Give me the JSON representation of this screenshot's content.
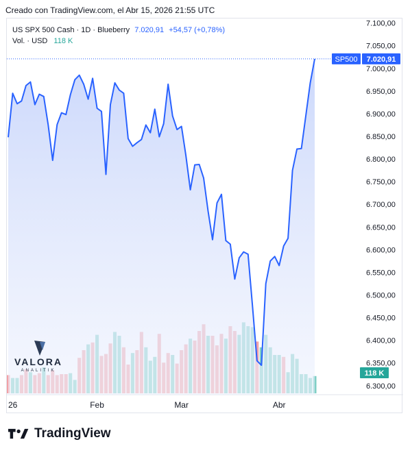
{
  "header": {
    "created_by": "Creado con TradingView.com, el Abr 15, 2026 21:55 UTC"
  },
  "legend": {
    "symbol": "US SPX 500 Cash · 1D · Blueberry",
    "last_price": "7.020,91",
    "change": "+54,57 (+0,78%)",
    "volume_label": "Vol. · USD",
    "volume_value": "118 K"
  },
  "badges": {
    "symbol_tag": "SP500",
    "price_tag": "7.020,91",
    "volume_tag": "118 K"
  },
  "watermark": {
    "brand": "VALORA",
    "sub": "ANALITIK"
  },
  "footer": {
    "brand": "TradingView"
  },
  "colors": {
    "line": "#2962ff",
    "area_top": "#c9d6fb",
    "area_bottom": "#eef2fd",
    "vol_up": "#7fcfc5",
    "vol_down": "#f2a1a6",
    "badge_blue": "#2962ff",
    "badge_green": "#26a69a"
  },
  "chart_data": {
    "type": "area",
    "y_ticks": [
      "7.100,00",
      "7.050,00",
      "7.000,00",
      "6.950,00",
      "6.900,00",
      "6.850,00",
      "6.800,00",
      "6.750,00",
      "6.700,00",
      "6.650,00",
      "6.600,00",
      "6.550,00",
      "6.500,00",
      "6.450,00",
      "6.400,00",
      "6.350,00",
      "6.300,00"
    ],
    "y_tick_values": [
      7100,
      7050,
      7000,
      6950,
      6900,
      6850,
      6800,
      6750,
      6700,
      6650,
      6600,
      6550,
      6500,
      6450,
      6400,
      6350,
      6300
    ],
    "ylim": [
      6280,
      7110
    ],
    "x_ticks": [
      {
        "label": "26",
        "index": 0
      },
      {
        "label": "Feb",
        "index": 20
      },
      {
        "label": "Mar",
        "index": 39
      },
      {
        "label": "Abr",
        "index": 61
      }
    ],
    "series": [
      {
        "values": [
          6848,
          6945,
          6922,
          6928,
          6962,
          6970,
          6920,
          6943,
          6938,
          6875,
          6797,
          6876,
          6902,
          6898,
          6942,
          6975,
          6985,
          6965,
          6932,
          6978,
          6912,
          6905,
          6766,
          6920,
          6968,
          6952,
          6945,
          6845,
          6828,
          6836,
          6843,
          6875,
          6858,
          6910,
          6849,
          6878,
          6965,
          6895,
          6865,
          6872,
          6808,
          6732,
          6787,
          6788,
          6758,
          6685,
          6622,
          6703,
          6722,
          6620,
          6612,
          6535,
          6582,
          6595,
          6590,
          6475,
          6355,
          6345,
          6525,
          6575,
          6585,
          6565,
          6608,
          6625,
          6775,
          6822,
          6823,
          6895,
          6968,
          7020.91
        ]
      }
    ],
    "volume": {
      "values": [
        19,
        16,
        16,
        19,
        25,
        22,
        19,
        21,
        27,
        19,
        24,
        19,
        20,
        20,
        21,
        14,
        37,
        45,
        51,
        53,
        61,
        39,
        41,
        52,
        64,
        60,
        48,
        30,
        42,
        45,
        64,
        48,
        34,
        38,
        62,
        32,
        42,
        40,
        31,
        45,
        51,
        57,
        55,
        65,
        72,
        60,
        60,
        50,
        62,
        57,
        70,
        65,
        61,
        74,
        70,
        69,
        54,
        48,
        61,
        48,
        40,
        40,
        38,
        22,
        41,
        36,
        20,
        20,
        16,
        18
      ],
      "direction": [
        "d",
        "u",
        "u",
        "d",
        "d",
        "u",
        "d",
        "d",
        "u",
        "d",
        "d",
        "d",
        "d",
        "d",
        "u",
        "u",
        "d",
        "d",
        "u",
        "d",
        "u",
        "d",
        "d",
        "d",
        "u",
        "u",
        "d",
        "d",
        "u",
        "d",
        "d",
        "u",
        "u",
        "u",
        "d",
        "d",
        "d",
        "u",
        "d",
        "d",
        "d",
        "u",
        "d",
        "d",
        "d",
        "u",
        "d",
        "d",
        "d",
        "u",
        "d",
        "d",
        "u",
        "u",
        "u",
        "u",
        "d",
        "u",
        "u",
        "u",
        "u",
        "u",
        "d",
        "u",
        "u",
        "u",
        "u",
        "u",
        "u",
        "u"
      ]
    }
  }
}
